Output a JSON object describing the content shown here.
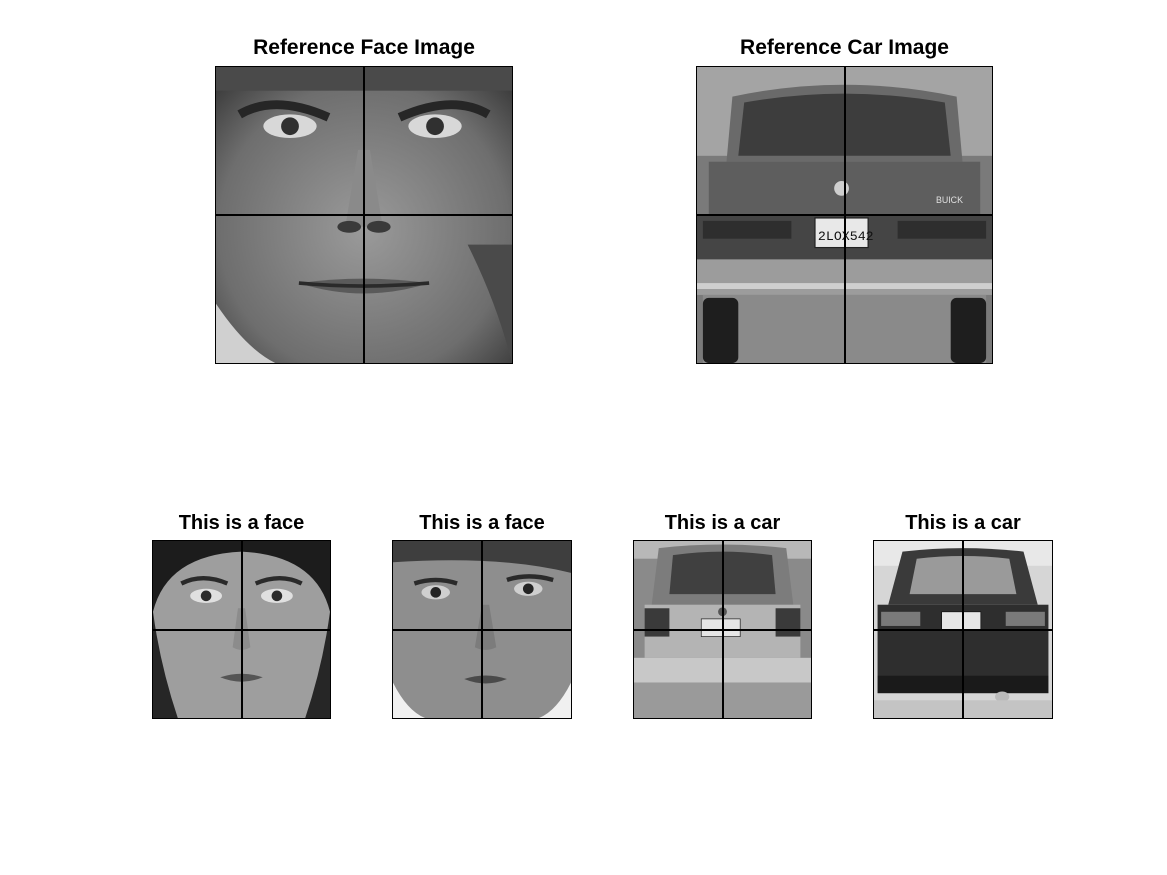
{
  "panels": {
    "ref_face": {
      "title": "Reference Face Image",
      "kind": "face",
      "gender": "male"
    },
    "ref_car": {
      "title": "Reference Car Image",
      "kind": "car",
      "plate": "2LOX542",
      "badge": "BUICK"
    },
    "face_1": {
      "title": "This is a face",
      "kind": "face",
      "gender": "female"
    },
    "face_2": {
      "title": "This is a face",
      "kind": "face",
      "gender": "female"
    },
    "car_1": {
      "title": "This is a car",
      "kind": "car"
    },
    "car_2": {
      "title": "This is a car",
      "kind": "car"
    }
  },
  "colors": {
    "background": "#ffffff",
    "grid_line": "#000000",
    "photo_tone": "grayscale"
  }
}
